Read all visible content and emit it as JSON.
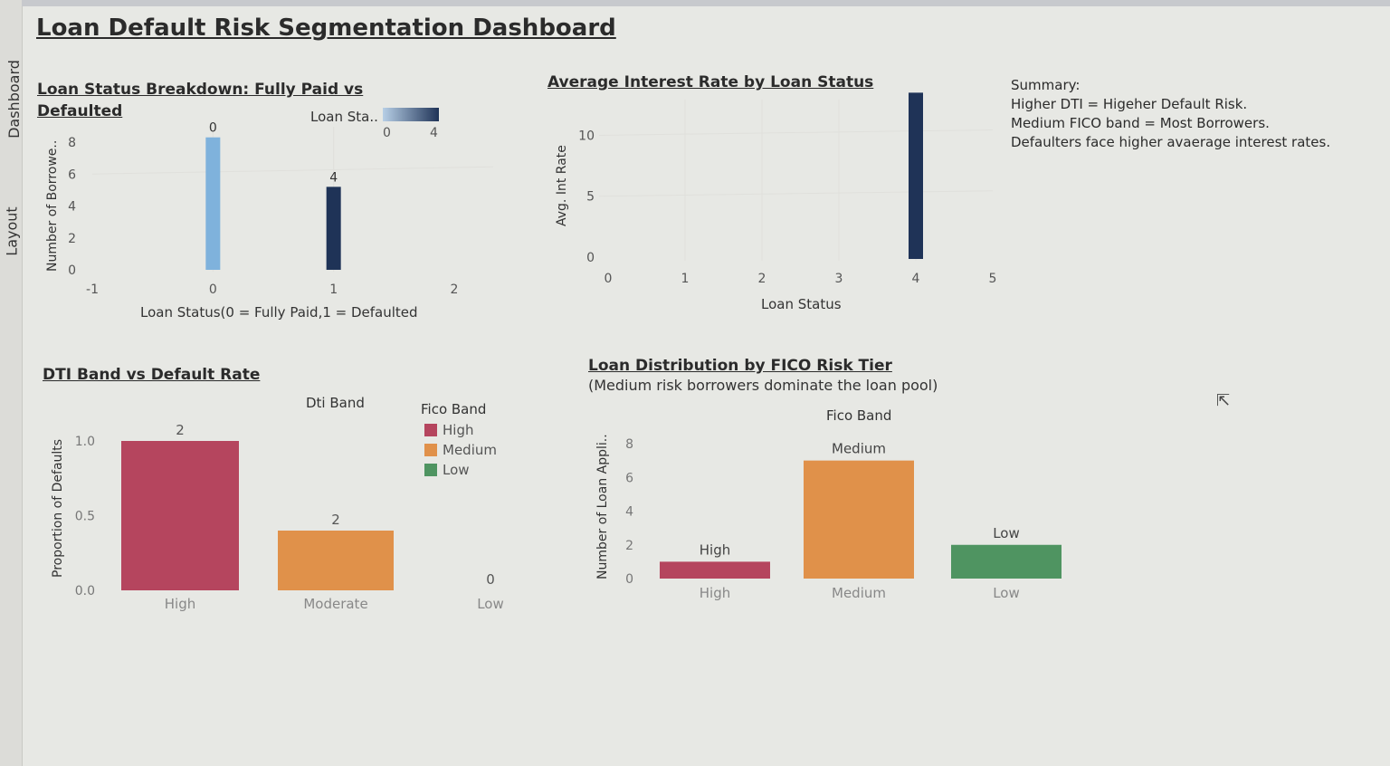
{
  "sidebar": {
    "tab_dashboard": "Dashboard",
    "tab_layout": "Layout"
  },
  "dashboard_title": "Loan Default Risk Segmentation Dashboard",
  "summary": {
    "heading": "Summary:",
    "lines": [
      "Higher DTI = Higeher Default Risk.",
      "Medium FICO band = Most Borrowers.",
      "Defaulters face higher avaerage interest rates."
    ]
  },
  "colors": {
    "light_blue": "#7fb2dc",
    "dark_navy": "#1f3357",
    "high": "#b5455e",
    "medium": "#e0914a",
    "low": "#4f9461"
  },
  "chart_data": [
    {
      "id": "loan_status",
      "type": "bar",
      "title_line1": "Loan Status Breakdown: Fully Paid vs",
      "title_line2": "Defaulted",
      "xlabel": "Loan Status(0 = Fully Paid,1 = Defaulted",
      "ylabel": "Number of Borrowe..",
      "x_ticks": [
        "-1",
        "0",
        "1",
        "2"
      ],
      "y_ticks": [
        "0",
        "2",
        "4",
        "6",
        "8"
      ],
      "xlim": [
        -1,
        2
      ],
      "ylim": [
        0,
        8
      ],
      "legend": {
        "title": "Loan Sta..",
        "min_label": "0",
        "max_label": "4"
      },
      "points": [
        {
          "x": 0,
          "y": 8.3,
          "label": "0",
          "color_value": 0
        },
        {
          "x": 1,
          "y": 5.2,
          "label": "4",
          "color_value": 4
        }
      ]
    },
    {
      "id": "avg_interest",
      "type": "bar",
      "title": "Average Interest Rate by Loan Status",
      "xlabel": "Loan Status",
      "ylabel": "Avg. Int Rate",
      "x_ticks": [
        "0",
        "1",
        "2",
        "3",
        "4",
        "5"
      ],
      "y_ticks": [
        "0",
        "5",
        "10"
      ],
      "xlim": [
        0,
        5
      ],
      "ylim": [
        0,
        11
      ],
      "points": [
        {
          "x": 4,
          "y": 13.5
        }
      ]
    },
    {
      "id": "dti_band",
      "type": "bar",
      "title": "DTI Band vs Default Rate",
      "column_header": "Dti Band",
      "ylabel": "Proportion of Defaults",
      "y_ticks": [
        "0.0",
        "0.5",
        "1.0"
      ],
      "ylim": [
        0,
        1
      ],
      "legend": {
        "title": "Fico Band",
        "items": [
          "High",
          "Medium",
          "Low"
        ]
      },
      "categories": [
        "High",
        "Moderate",
        "Low"
      ],
      "values": [
        1.0,
        0.4,
        0
      ],
      "labels": [
        "2",
        "2",
        "0"
      ],
      "series_colors": [
        "high",
        "medium",
        "low"
      ]
    },
    {
      "id": "fico_tier",
      "type": "bar",
      "title": "Loan Distribution by FICO Risk Tier",
      "subtitle": "(Medium risk borrowers dominate the loan pool)",
      "column_header": "Fico Band",
      "ylabel": "Number of Loan Appli..",
      "y_ticks": [
        "0",
        "2",
        "4",
        "6",
        "8"
      ],
      "ylim": [
        0,
        8
      ],
      "categories": [
        "High",
        "Medium",
        "Low"
      ],
      "values": [
        1,
        7,
        2
      ],
      "labels": [
        "High",
        "Medium",
        "Low"
      ],
      "series_colors": [
        "high",
        "medium",
        "low"
      ]
    }
  ]
}
